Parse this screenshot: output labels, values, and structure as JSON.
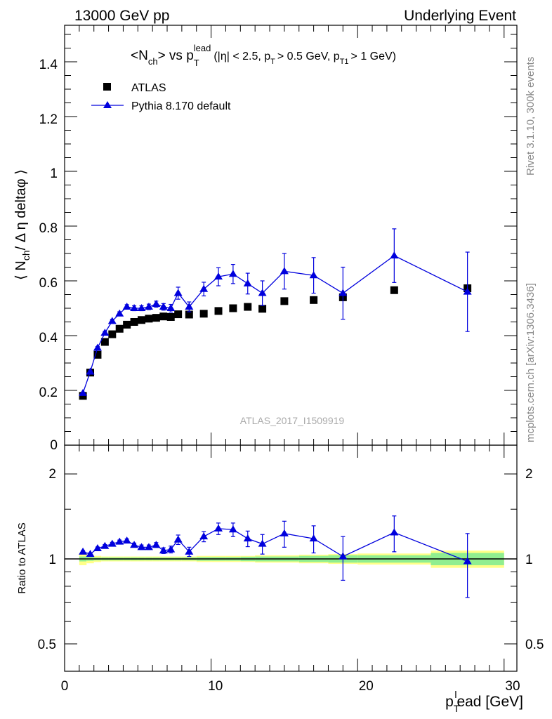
{
  "header": {
    "left": "13000 GeV pp",
    "right": "Underlying Event"
  },
  "side_labels": {
    "rivet": "Rivet 3.1.10,  300k events",
    "mcplots": "mcplots.cern.ch [arXiv:1306.3436]"
  },
  "chart_data": {
    "type": "scatter",
    "title": {
      "main": "<N",
      "main_sub": "ch",
      "mid": "> vs p",
      "mid_sub": "T",
      "mid_sup": "lead",
      "cuts_1": "(|η| < 2.5, p",
      "cuts_1_sub": "T",
      "cuts_2": "> 0.5 GeV, p",
      "cuts_2_sub": "T1",
      "cuts_3": "> 1 GeV)"
    },
    "ylabel": {
      "a": "⟨ N",
      "a_sub": "ch",
      "b": "/ Δ η deltaφ ⟩"
    },
    "xlabel": {
      "a": "p",
      "a_sub": "T",
      "a_sup": "l",
      "b": "ead [GeV]"
    },
    "ratio_ylabel": "Ratio to ATLAS",
    "watermark": "ATLAS_2017_I1509919",
    "xlim": [
      0,
      30
    ],
    "ylim": [
      0,
      1.55
    ],
    "ratio_ylim": [
      0.4,
      2.4
    ],
    "ratio_log_scale": true,
    "x_ticks": [
      "0",
      "10",
      "20",
      "30"
    ],
    "y_ticks": [
      "0",
      "0.2",
      "0.4",
      "0.6",
      "0.8",
      "1",
      "1.2",
      "1.4"
    ],
    "ratio_ticks": [
      "0.5",
      "1",
      "2"
    ],
    "legend_position": "top-left",
    "series": [
      {
        "name": "ATLAS",
        "marker": "square",
        "color": "#000000",
        "x": [
          1.25,
          1.75,
          2.25,
          2.75,
          3.25,
          3.75,
          4.25,
          4.75,
          5.25,
          5.75,
          6.25,
          6.75,
          7.25,
          7.75,
          8.5,
          9.5,
          10.5,
          11.5,
          12.5,
          13.5,
          15,
          17,
          19,
          22.5,
          27.5
        ],
        "y": [
          0.18,
          0.265,
          0.33,
          0.377,
          0.405,
          0.425,
          0.44,
          0.45,
          0.457,
          0.462,
          0.465,
          0.47,
          0.468,
          0.478,
          0.477,
          0.48,
          0.49,
          0.5,
          0.505,
          0.498,
          0.526,
          0.53,
          0.54,
          0.566,
          0.573
        ]
      },
      {
        "name": "Pythia 8.170 default",
        "marker": "triangle",
        "color": "#0000dd",
        "x": [
          1.25,
          1.75,
          2.25,
          2.75,
          3.25,
          3.75,
          4.25,
          4.75,
          5.25,
          5.75,
          6.25,
          6.75,
          7.25,
          7.75,
          8.5,
          9.5,
          10.5,
          11.5,
          12.5,
          13.5,
          15,
          17,
          19,
          22.5,
          27.5
        ],
        "y": [
          0.19,
          0.268,
          0.355,
          0.41,
          0.453,
          0.48,
          0.505,
          0.5,
          0.5,
          0.505,
          0.515,
          0.505,
          0.5,
          0.555,
          0.505,
          0.57,
          0.615,
          0.625,
          0.59,
          0.555,
          0.635,
          0.62,
          0.555,
          0.692,
          0.56
        ],
        "yerr": [
          0.003,
          0.004,
          0.005,
          0.006,
          0.007,
          0.007,
          0.008,
          0.009,
          0.009,
          0.01,
          0.011,
          0.012,
          0.014,
          0.022,
          0.018,
          0.025,
          0.033,
          0.035,
          0.038,
          0.045,
          0.065,
          0.065,
          0.095,
          0.098,
          0.145
        ]
      }
    ],
    "ratio": {
      "x": [
        1.25,
        1.75,
        2.25,
        2.75,
        3.25,
        3.75,
        4.25,
        4.75,
        5.25,
        5.75,
        6.25,
        6.75,
        7.25,
        7.75,
        8.5,
        9.5,
        10.5,
        11.5,
        12.5,
        13.5,
        15,
        17,
        19,
        22.5,
        27.5
      ],
      "y": [
        1.06,
        1.04,
        1.09,
        1.11,
        1.13,
        1.15,
        1.16,
        1.12,
        1.1,
        1.1,
        1.12,
        1.07,
        1.08,
        1.17,
        1.06,
        1.2,
        1.28,
        1.27,
        1.18,
        1.13,
        1.23,
        1.18,
        1.02,
        1.24,
        0.98
      ],
      "yerr": [
        0.01,
        0.01,
        0.012,
        0.014,
        0.015,
        0.016,
        0.017,
        0.018,
        0.02,
        0.02,
        0.022,
        0.025,
        0.03,
        0.045,
        0.04,
        0.05,
        0.06,
        0.07,
        0.075,
        0.09,
        0.13,
        0.13,
        0.18,
        0.18,
        0.25
      ]
    },
    "data_band": {
      "x_edges": [
        1,
        1.5,
        2,
        2.5,
        3,
        3.5,
        4,
        4.5,
        5,
        5.5,
        6,
        6.5,
        7,
        7.5,
        8,
        9,
        10,
        11,
        12,
        13,
        14,
        16,
        18,
        20,
        25,
        30
      ],
      "stat_half": [
        0.02,
        0.015,
        0.012,
        0.012,
        0.012,
        0.012,
        0.012,
        0.012,
        0.012,
        0.012,
        0.012,
        0.012,
        0.012,
        0.012,
        0.012,
        0.015,
        0.015,
        0.015,
        0.018,
        0.02,
        0.02,
        0.025,
        0.03,
        0.03,
        0.05
      ],
      "total_half": [
        0.05,
        0.035,
        0.025,
        0.02,
        0.02,
        0.02,
        0.02,
        0.02,
        0.02,
        0.02,
        0.02,
        0.02,
        0.02,
        0.02,
        0.02,
        0.025,
        0.025,
        0.025,
        0.025,
        0.03,
        0.03,
        0.035,
        0.04,
        0.045,
        0.07
      ],
      "stat_color": "#90ee90",
      "total_color": "#ffff88"
    }
  }
}
